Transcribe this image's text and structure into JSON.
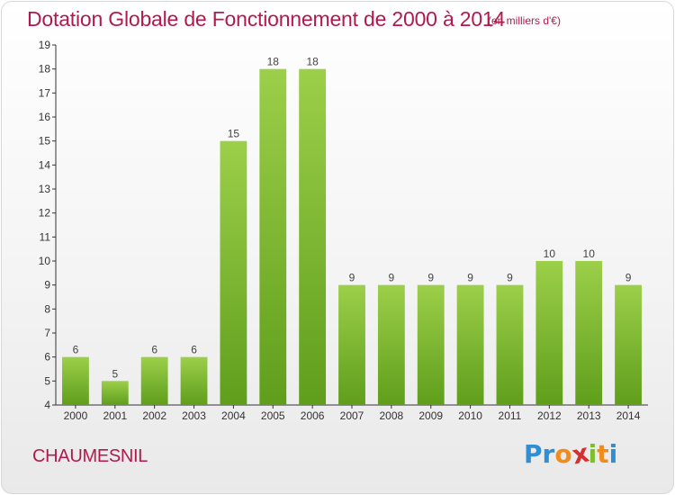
{
  "title": "Dotation Globale de Fonctionnement de 2000 à 2014",
  "unit_note": "(en milliers d'€)",
  "commune": "CHAUMESNIL",
  "logo": {
    "text": "Proxiti",
    "letters": [
      {
        "ch": "P",
        "color": "#2f8fd6"
      },
      {
        "ch": "r",
        "color": "#2f8fd6"
      },
      {
        "ch": "o",
        "color": "#f08c1a"
      },
      {
        "ch": "x",
        "color": "#d62f2f"
      },
      {
        "ch": "i",
        "color": "#7bbf2a"
      },
      {
        "ch": "t",
        "color": "#f08c1a"
      },
      {
        "ch": "i",
        "color": "#2f8fd6"
      }
    ]
  },
  "colors": {
    "title": "#b21a4d",
    "bar_top": "#9ccf4a",
    "bar_bottom": "#5f9e1b",
    "axis": "#333333"
  },
  "chart_data": {
    "type": "bar",
    "categories": [
      "2000",
      "2001",
      "2002",
      "2003",
      "2004",
      "2005",
      "2006",
      "2007",
      "2008",
      "2009",
      "2010",
      "2011",
      "2012",
      "2013",
      "2014"
    ],
    "values": [
      6,
      5,
      6,
      6,
      15,
      18,
      18,
      9,
      9,
      9,
      9,
      9,
      10,
      10,
      9
    ],
    "ylim": [
      4,
      19
    ],
    "yticks": [
      4,
      5,
      6,
      7,
      8,
      9,
      10,
      11,
      12,
      13,
      14,
      15,
      16,
      17,
      18,
      19
    ],
    "xlabel": "",
    "ylabel": "",
    "grid": false,
    "data_labels": true
  }
}
